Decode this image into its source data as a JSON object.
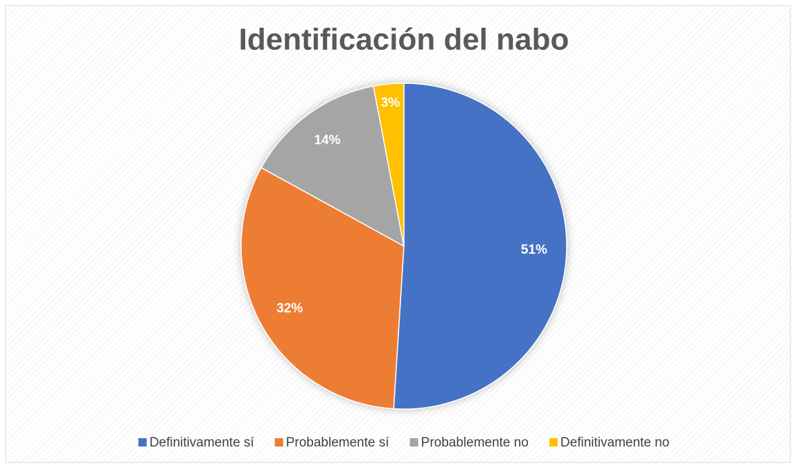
{
  "chart_data": {
    "type": "pie",
    "title": "Identificación del nabo",
    "categories": [
      "Definitivamente sí",
      "Probablemente sí",
      "Probablemente no",
      "Definitivamente no"
    ],
    "values": [
      51,
      32,
      14,
      3
    ],
    "value_labels": [
      "51%",
      "32%",
      "14%",
      "3%"
    ],
    "colors": [
      "#4472c4",
      "#ed7d31",
      "#a5a5a5",
      "#ffc000"
    ],
    "legend": "bottom"
  }
}
